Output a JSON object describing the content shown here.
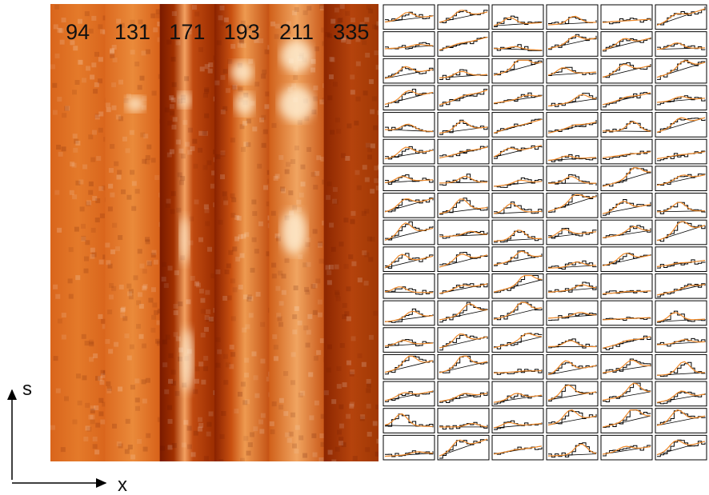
{
  "image": {
    "channels": [
      "94",
      "131",
      "171",
      "193",
      "211",
      "335"
    ]
  },
  "axes": {
    "vertical": "s",
    "horizontal": "x"
  }
}
